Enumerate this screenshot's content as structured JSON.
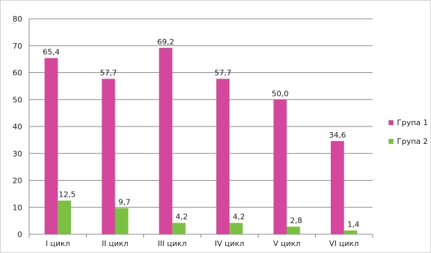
{
  "chart_data": {
    "type": "bar",
    "categories": [
      "I цикл",
      "II цикл",
      "III цикл",
      "IV цикл",
      "V цикл",
      "VI цикл"
    ],
    "series": [
      {
        "name": "Група 1",
        "color": "#d5479c",
        "values": [
          65.4,
          57.7,
          69.2,
          57.7,
          50.0,
          34.6
        ],
        "labels": [
          "65,4",
          "57,7",
          "69,2",
          "57,7",
          "50,0",
          "34,6"
        ]
      },
      {
        "name": "Група 2",
        "color": "#7ac143",
        "values": [
          12.5,
          9.7,
          4.2,
          4.2,
          2.8,
          1.4
        ],
        "labels": [
          "12,5",
          "9,7",
          "4,2",
          "4,2",
          "2,8",
          "1,4"
        ]
      }
    ],
    "yticks": [
      0,
      10,
      20,
      30,
      40,
      50,
      60,
      70,
      80
    ],
    "ylim": [
      0,
      80
    ],
    "grid": true,
    "legend_position": "right",
    "title": "",
    "xlabel": "",
    "ylabel": ""
  }
}
